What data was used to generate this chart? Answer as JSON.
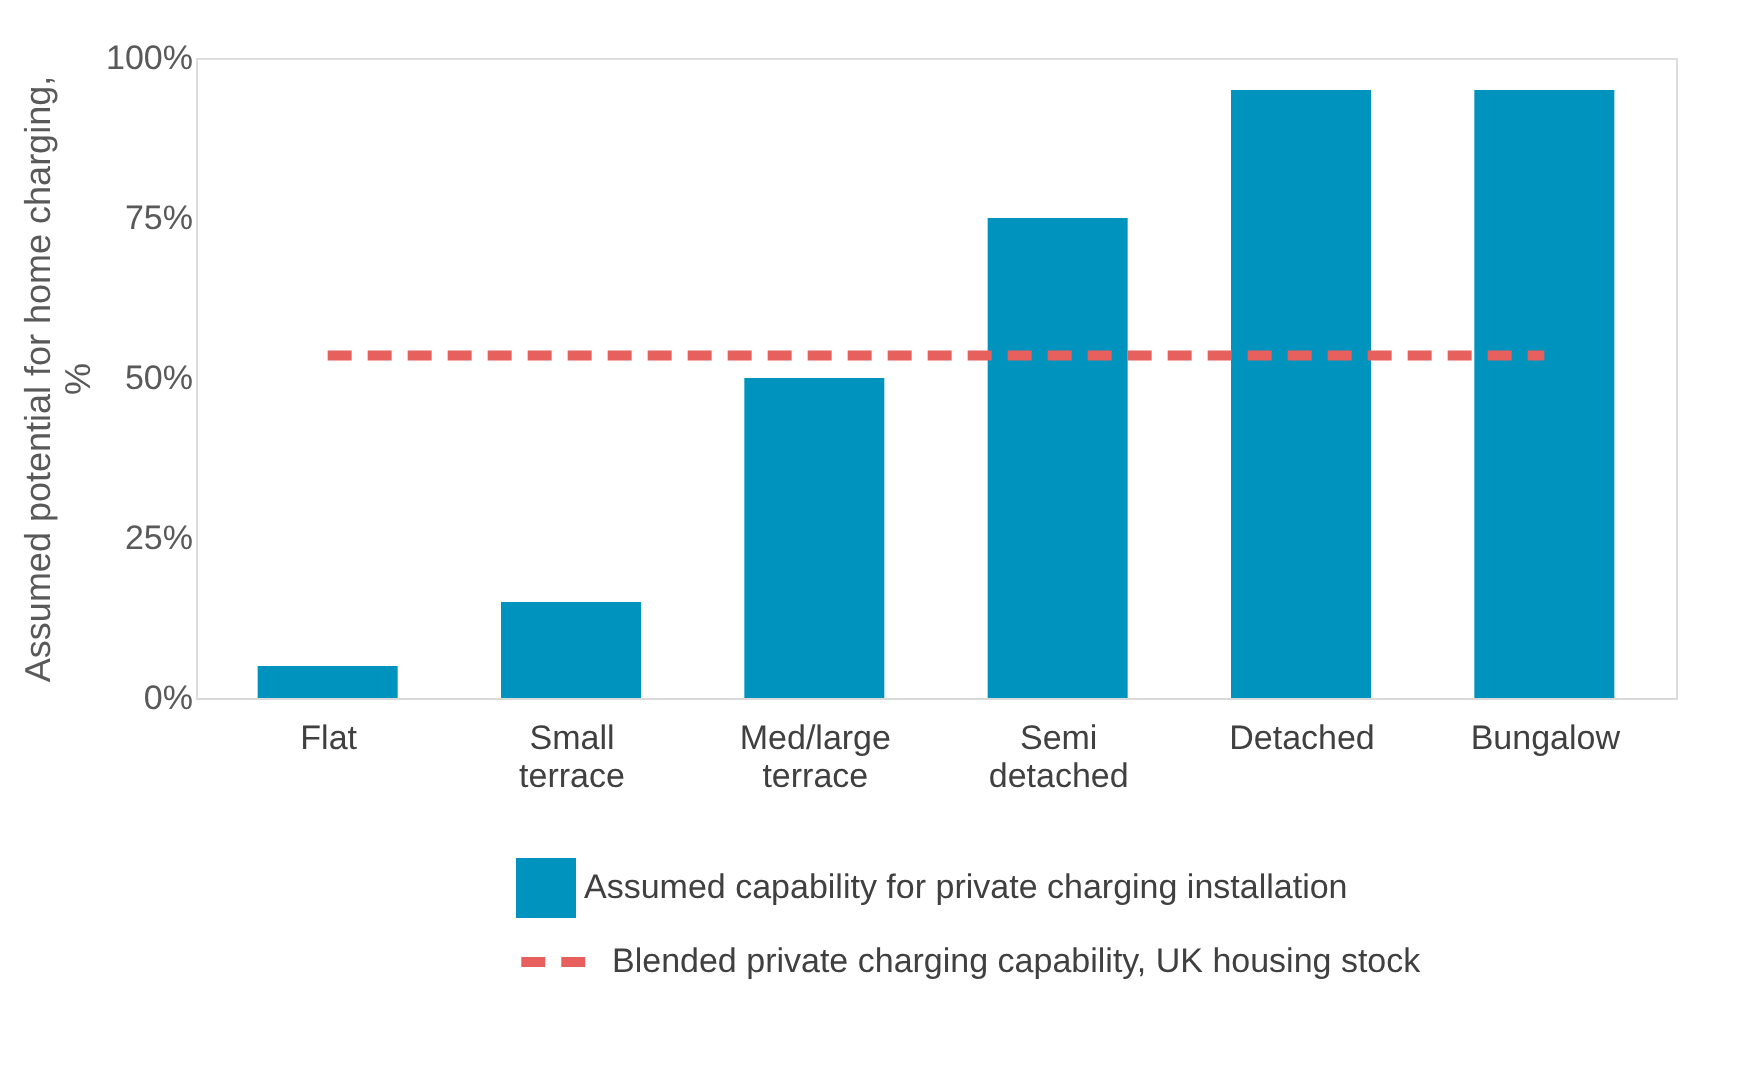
{
  "chart_data": {
    "type": "bar",
    "ylabel": "Assumed potential for home charging, %",
    "categories": [
      "Flat",
      "Small terrace",
      "Med/large terrace",
      "Semi detached",
      "Detached",
      "Bungalow"
    ],
    "series": [
      {
        "name": "Assumed capability for private charging installation",
        "color": "#0093bd",
        "values": [
          5,
          15,
          50,
          75,
          95,
          95
        ]
      },
      {
        "name": "Blended private charging capability, UK housing stock",
        "type": "line",
        "line_style": "dashed",
        "color": "#e8605e",
        "values": [
          53.5,
          53.5,
          53.5,
          53.5,
          53.5,
          53.5
        ]
      }
    ],
    "ylim": [
      0,
      100
    ],
    "yticks": [
      {
        "value": 0,
        "label": "0%"
      },
      {
        "value": 25,
        "label": "25%"
      },
      {
        "value": 50,
        "label": "50%"
      },
      {
        "value": 75,
        "label": "75%"
      },
      {
        "value": 100,
        "label": "100%"
      }
    ],
    "legend": "bottom"
  }
}
